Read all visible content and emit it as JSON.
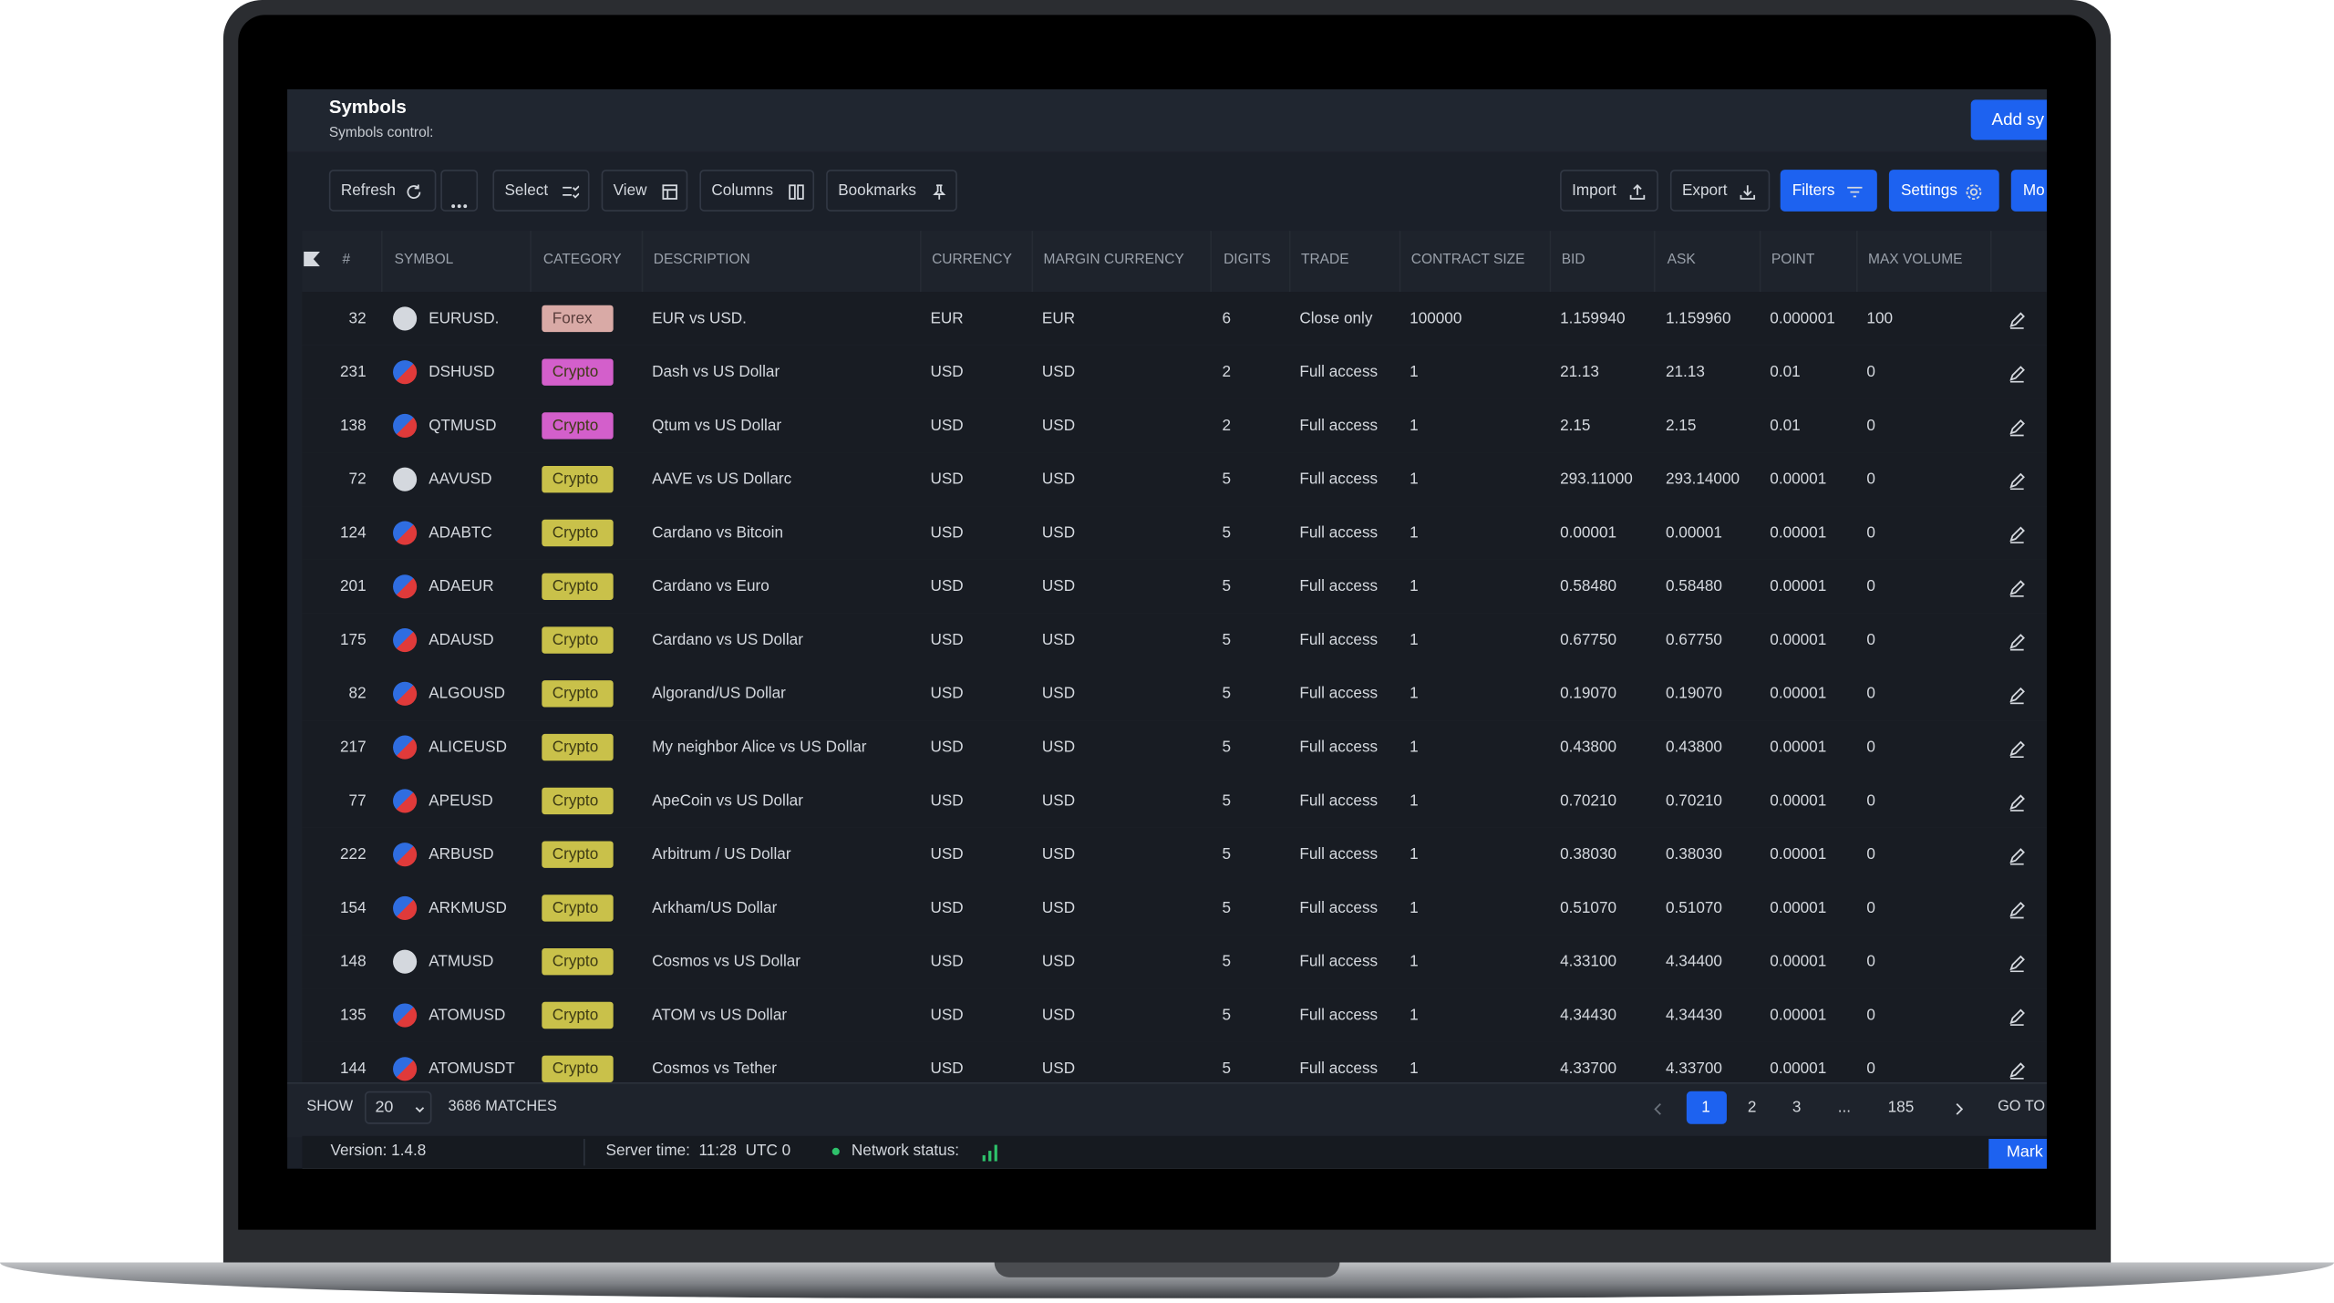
{
  "header": {
    "title": "Symbols",
    "subtitle": "Symbols control:",
    "add_button": "Add sy"
  },
  "toolbar": {
    "left": [
      "Refresh",
      "Select",
      "View",
      "Columns",
      "Bookmarks"
    ],
    "right": [
      "Import",
      "Export",
      "Filters",
      "Settings",
      "Mo"
    ]
  },
  "table": {
    "columns": [
      "#",
      "SYMBOL",
      "CATEGORY",
      "DESCRIPTION",
      "CURRENCY",
      "MARGIN CURRENCY",
      "DIGITS",
      "TRADE",
      "CONTRACT SIZE",
      "BID",
      "ASK",
      "POINT",
      "MAX VOLUME"
    ],
    "badge_colors": [
      "#d9aaa6",
      "#d35fcb",
      "#d35fcb",
      "#c9c14a",
      "#c9c14a",
      "#c9c14a",
      "#c9c14a",
      "#c9c14a",
      "#c9c14a",
      "#c9c14a",
      "#c9c14a",
      "#c9c14a",
      "#c9c14a",
      "#c9c14a",
      "#c9c14a"
    ],
    "rows": [
      [
        "32",
        "EURUSD.",
        "Forex",
        "EUR vs USD.",
        "EUR",
        "EUR",
        "6",
        "Close only",
        "100000",
        "1.159940",
        "1.159960",
        "0.000001",
        "100"
      ],
      [
        "231",
        "DSHUSD",
        "Crypto",
        "Dash vs US Dollar",
        "USD",
        "USD",
        "2",
        "Full access",
        "1",
        "21.13",
        "21.13",
        "0.01",
        "0"
      ],
      [
        "138",
        "QTMUSD",
        "Crypto",
        "Qtum vs US Dollar",
        "USD",
        "USD",
        "2",
        "Full access",
        "1",
        "2.15",
        "2.15",
        "0.01",
        "0"
      ],
      [
        "72",
        "AAVUSD",
        "Crypto",
        "AAVE vs US Dollarc",
        "USD",
        "USD",
        "5",
        "Full access",
        "1",
        "293.11000",
        "293.14000",
        "0.00001",
        "0"
      ],
      [
        "124",
        "ADABTC",
        "Crypto",
        "Cardano vs Bitcoin",
        "USD",
        "USD",
        "5",
        "Full access",
        "1",
        "0.00001",
        "0.00001",
        "0.00001",
        "0"
      ],
      [
        "201",
        "ADAEUR",
        "Crypto",
        "Cardano vs Euro",
        "USD",
        "USD",
        "5",
        "Full access",
        "1",
        "0.58480",
        "0.58480",
        "0.00001",
        "0"
      ],
      [
        "175",
        "ADAUSD",
        "Crypto",
        "Cardano vs US Dollar",
        "USD",
        "USD",
        "5",
        "Full access",
        "1",
        "0.67750",
        "0.67750",
        "0.00001",
        "0"
      ],
      [
        "82",
        "ALGOUSD",
        "Crypto",
        "Algorand/US Dollar",
        "USD",
        "USD",
        "5",
        "Full access",
        "1",
        "0.19070",
        "0.19070",
        "0.00001",
        "0"
      ],
      [
        "217",
        "ALICEUSD",
        "Crypto",
        "My neighbor Alice vs US Dollar",
        "USD",
        "USD",
        "5",
        "Full access",
        "1",
        "0.43800",
        "0.43800",
        "0.00001",
        "0"
      ],
      [
        "77",
        "APEUSD",
        "Crypto",
        "ApeCoin vs US Dollar",
        "USD",
        "USD",
        "5",
        "Full access",
        "1",
        "0.70210",
        "0.70210",
        "0.00001",
        "0"
      ],
      [
        "222",
        "ARBUSD",
        "Crypto",
        "Arbitrum / US Dollar",
        "USD",
        "USD",
        "5",
        "Full access",
        "1",
        "0.38030",
        "0.38030",
        "0.00001",
        "0"
      ],
      [
        "154",
        "ARKMUSD",
        "Crypto",
        "Arkham/US Dollar",
        "USD",
        "USD",
        "5",
        "Full access",
        "1",
        "0.51070",
        "0.51070",
        "0.00001",
        "0"
      ],
      [
        "148",
        "ATMUSD",
        "Crypto",
        "Cosmos vs US Dollar",
        "USD",
        "USD",
        "5",
        "Full access",
        "1",
        "4.33100",
        "4.34400",
        "0.00001",
        "0"
      ],
      [
        "135",
        "ATOMUSD",
        "Crypto",
        "ATOM vs US Dollar",
        "USD",
        "USD",
        "5",
        "Full access",
        "1",
        "4.34430",
        "4.34430",
        "0.00001",
        "0"
      ],
      [
        "144",
        "ATOMUSDT",
        "Crypto",
        "Cosmos vs Tether",
        "USD",
        "USD",
        "5",
        "Full access",
        "1",
        "4.33700",
        "4.33700",
        "0.00001",
        "0"
      ]
    ]
  },
  "footer": {
    "show": "SHOW",
    "page_size": "20",
    "matches": "3686 MATCHES",
    "pages": [
      "1",
      "2",
      "3",
      "...",
      "185"
    ],
    "goto": "GO TO"
  },
  "status": {
    "version": "Version: 1.4.8",
    "server_time": "Server time:  11:28  UTC 0",
    "network": "Network status:",
    "mark_button": "Mark"
  }
}
